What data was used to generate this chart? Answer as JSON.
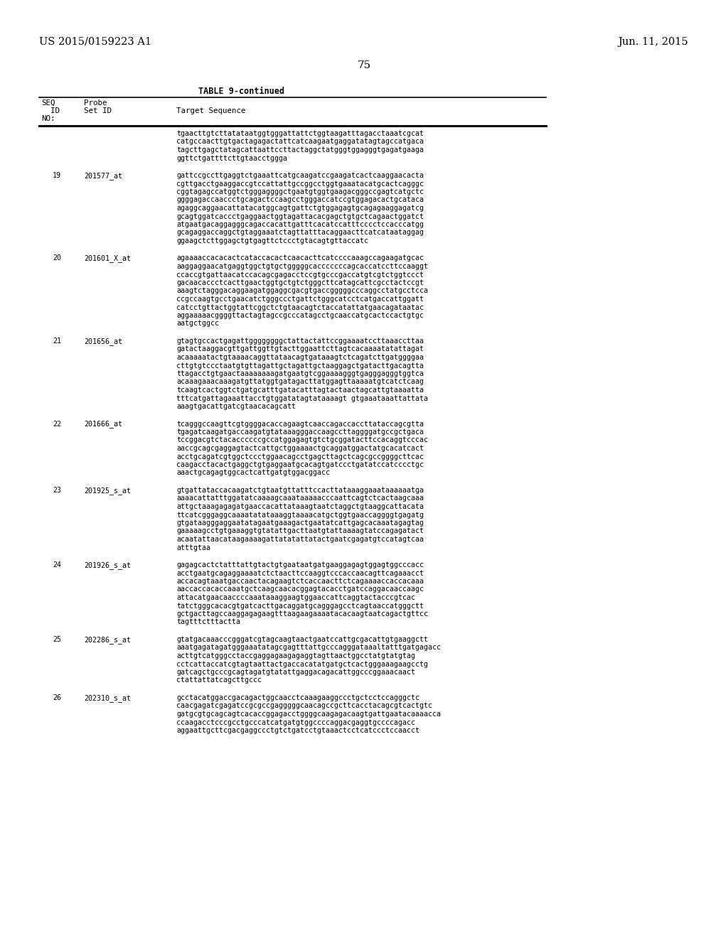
{
  "page_number": "75",
  "left_header": "US 2015/0159223 A1",
  "right_header": "Jun. 11, 2015",
  "table_title": "TABLE 9-continued",
  "background_color": "#ffffff",
  "text_color": "#000000",
  "rows": [
    {
      "seq_id": "",
      "probe_id": "",
      "sequence": "tgaacttgtcttatataatggtgggattattctggtaagatttagacctaaatcgcat\ncatgccaacttgtgactagagactattcatcaagaatgaggatatagtagccatgaca\ntagcttgagctatagcattaattccttactaggctatgggtggagggtgagatgaaga\nggttctgattttcttgtaacctggga"
    },
    {
      "seq_id": "19",
      "probe_id": "201577_at",
      "sequence": "gattccgccttgaggtctgaaattcatgcaagatccgaagatcactcaaggaacacta\ncgttgacctgaaggaccgtccattattgccggcctggtgaaatacatgcactcagggc\ncggtagagccatggtctgggaggggctgaatgtggtgaagacgggccgagtcatgctc\nggggagaccaaccctgcagactccaagcctgggaccatccgtggagacactgcataca\nagaggcaggaacattatacatggcagtgattctgtggagagtgcagagaaggagatcg\ngcagtggatcaccctgaggaactggtagattacacgagctgtgctcagaactggatct\natgaatgacaggagggcagaccacattgatttcacatccatttcccctccacccatgg\ngcagaggaccaggctgtaggaaatctagttatttacaggaacttcatcataataggag\nggaagctcttggagctgtgagttctccctgtacagtgttaccatc"
    },
    {
      "seq_id": "20",
      "probe_id": "201601_X_at",
      "sequence": "agaaaaccacacactcataccacactcaacacttcatccccaaagccagaagatgcac\naaggaggaacatgaggtggctgtgctgggggcacccccccagcaccatccttccaaggt\nccaccgtgattaacatccacagcgagacctccgtgcccgaccatgtcgtctggtccct\ngacaacaccctcacttgaactggtgctgtctgggcttcatagcattcgcctactccgt\naaagtctagggacaggaagatggaggcgacgtgaccgggggcccaggcctatgcctcca\nccgccaagtgcctgaacatctgggccctgattctgggcatcctcatgaccattggatt\ncatcctgttactggtattcggctctgtaacagtctaccatattatgaacagataatac\naggaaaaacggggttactagtagccgcccatagcctgcaaccatgcactccactgtgc\naatgctggcc"
    },
    {
      "seq_id": "21",
      "probe_id": "201656_at",
      "sequence": "gtagtgccactgagattggggggggctattactattccggaaaatccttaaaccttaa\ngatactaaggacgttgattggttgtacttggaattcttagtcacaaaatatattagat\nacaaaaatactgtaaaacaggttataacagtgataaagtctcagatcttgatggggaa\ncttgtgtccctaatgtgttagattgctagattgctaaggagctgatacttgacagtta\nttagacctgtgaactaaaaaaaagatgaatgtcggaaaagggtgagggagggtggtca\nacaaagaaacaaagatgttatggtgatagacttatggagttaaaaatgtcatctcaag\ntcaagtcactggtctgatgcatttgatacatttagtactaactagcattgtaaaatta\ntttcatgattagaaattacctgtggatatagtataaaagt gtgaaataaattattata\naaagtgacattgatcgtaacacagcatt"
    },
    {
      "seq_id": "22",
      "probe_id": "201666_at",
      "sequence": "tcagggccaagttcgtggggacaccagaagtcaaccagaccaccttataccagcgtta\ntgagatcaagatgaccaagatgtataaagggaccaagccttaggggatgccgctgaca\ntccggacgtctacaccccccgccatggagagtgtctgcggatacttccacaggtcccac\naaccgcagcgaggagtactcattgctggaaaactgcaggatggactatgcacatcact\nacctgcagatcgtggctccctggaacagcctgagcttagctcagcgccggggcttcac\ncaagacctacactgaggctgtgaggaatgcacagtgatccctgatatccatcccctgc\naaactgcagagtggcactcattgatgtggacggacc"
    },
    {
      "seq_id": "23",
      "probe_id": "201925_s_at",
      "sequence": "gtgattataccacaagatctgtaatgttatttccacttataaaggaaataaaaaatga\naaaacattatttggatatcaaaagcaaataaaaacccaattcagtctcactaagcaaa\nattgctaaagagagatgaaccacattataaagtaatctaggctgtaaggcattacata\nttcatcgggaggcaaaatatataaaggtaaaacatgctggtgaaccaggggtgagatg\ngtgataagggaggaatatagaatgaaagactgaatatcattgagcacaaatagagtag\ngaaaaagcctgtgaaaggtgtatattgacttaatgtattaaaagtatccagagatact\nacaatattaacataagaaaagattatatattatactgaatcgagatgtccatagtcaa\natttgtaa"
    },
    {
      "seq_id": "24",
      "probe_id": "201926_s_at",
      "sequence": "gagagcactctatttattgtactgtgaataatgatgaaggagagtggagtggcccacc\nacctgaatgcagaggaaaatctctaacttccaaggtcccaccaacagttcagaaacct\naccacagtaaatgaccaactacagaagtctcaccaacttctcagaaaaccaccacaaa\naaccaccacaccaaatgctcaagcaacacggagtacacctgatccaggacaaccaagc\nattacatgaacaaccccaaataaaggaagtggaaccattcaggtactacccgtcac\ntatctgggcacacgtgatcacttgacaggatgcagggagcctcagtaaccatgggctt\ngctgacttagccaaggagagaagtttaagaagaaaatacacaagtaatcagactgttcc\ntagtttctttactta"
    },
    {
      "seq_id": "25",
      "probe_id": "202286_s_at",
      "sequence": "gtatgacaaacccgggatcgtagcaagtaactgaatccattgcgacattgtgaaggctt\naaatgagatagatgggaaatatagcgagtttattgcccagggataaaltatttgatgagacc\nacttgtcatgggcctaccgaggagaagagaggtagttaactggcctatgtatgtag\ncctcattaccatcgtagtaattactgaccacatatgatgctcactgggaaagaagcctg\ngatcagctgcccgcagtagatgtatattgaggacagacattggcccggaaacaact\nctattattatcagcttgccc"
    },
    {
      "seq_id": "26",
      "probe_id": "202310_s_at",
      "sequence": "gcctacatggaccgacagactggcaacctcaaagaaggccctgctcctccagggctc\ncaacgagatcgagatccgcgccgagggggcaacagccgcttcacctacagcgtcactgtc\ngatgcgtgcagcagtcacaccggagacctggggcaagagacaagtgattgaatacaaaacca\nccaagacctcccgcctgcccatcatgatgtggccccaggacgaggtgccccagacc\naggaattgcttcgacgaggccctgtctgatcctgtaaactcctcatccctccaacct"
    }
  ]
}
